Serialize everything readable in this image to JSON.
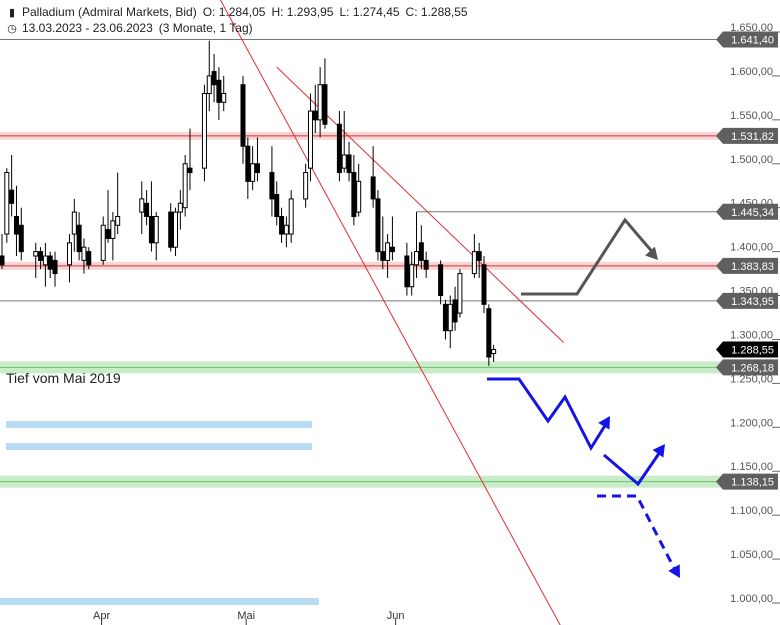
{
  "header": {
    "instrument": "Palladium (Admiral Markets, Bid)",
    "open": "O: 1.284,05",
    "high": "H: 1.293,95",
    "low": "L: 1.274,45",
    "close": "C: 1.288,55",
    "range": "13.03.2023 - 23.06.2023",
    "period": "(3 Monate, 1 Tag)",
    "instrument_icon": "candlestick-icon",
    "range_icon": "clock-icon"
  },
  "annotation": {
    "text": "Tief vom Mai 2019"
  },
  "colors": {
    "candle_up": "#ffffff",
    "candle_down": "#000000",
    "resistance": "#e8a0a0",
    "support": "#a8dca8",
    "trendline": "#e03030",
    "scenario_gray": "#555555",
    "scenario_blue": "#1414e6",
    "zone_blue": "#b8dcf4"
  },
  "chart_data": {
    "type": "candlestick",
    "x_tick_labels": [
      "Apr",
      "Mai",
      "Jun"
    ],
    "x_ticks": [
      "2023-04-01",
      "2023-05-01",
      "2023-06-01"
    ],
    "x_range": [
      "2023-03-13",
      "2023-06-23"
    ],
    "y_range": [
      990,
      1660
    ],
    "y_ticks": [
      1000,
      1050,
      1100,
      1150,
      1200,
      1250,
      1300,
      1350,
      1400,
      1450,
      1500,
      1550,
      1600,
      1650
    ],
    "y_tick_labels": [
      "1.000,00",
      "1.050,00",
      "1.100,00",
      "1.150,00",
      "1.200,00",
      "1.250,00",
      "1.300,00",
      "1.350,00",
      "1.400,00",
      "1.450,00",
      "1.500,00",
      "1.550,00",
      "1.600,00",
      "1.650,00"
    ],
    "horizontal_levels": [
      {
        "value": 1641.4,
        "label": "1.641,40",
        "style": "gray-line"
      },
      {
        "value": 1531.82,
        "label": "1.531,82",
        "style": "red-zone"
      },
      {
        "value": 1445.34,
        "label": "1.445,34",
        "style": "gray-line"
      },
      {
        "value": 1383.83,
        "label": "1.383,83",
        "style": "red-zone"
      },
      {
        "value": 1343.95,
        "label": "1.343,95",
        "style": "gray-line"
      },
      {
        "value": 1268.18,
        "label": "1.268,18",
        "style": "green-zone"
      },
      {
        "value": 1138.15,
        "label": "1.138,15",
        "style": "green-zone"
      }
    ],
    "last_price": {
      "value": 1288.55,
      "label": "1.288,55"
    },
    "trendlines": [
      {
        "from": {
          "date": "2023-04-24",
          "value": 1720
        },
        "to": {
          "date": "2023-06-23",
          "value": 1060
        }
      },
      {
        "from": {
          "date": "2023-05-09",
          "value": 1610
        },
        "to": {
          "date": "2023-06-23",
          "value": 1335
        }
      }
    ],
    "candles": [
      {
        "date": "2023-03-13",
        "o": 1395,
        "h": 1420,
        "l": 1380,
        "c": 1385
      },
      {
        "date": "2023-03-14",
        "o": 1420,
        "h": 1495,
        "l": 1410,
        "c": 1490
      },
      {
        "date": "2023-03-15",
        "o": 1470,
        "h": 1510,
        "l": 1440,
        "c": 1455
      },
      {
        "date": "2023-03-16",
        "o": 1440,
        "h": 1475,
        "l": 1395,
        "c": 1420
      },
      {
        "date": "2023-03-17",
        "o": 1430,
        "h": 1450,
        "l": 1390,
        "c": 1400
      },
      {
        "date": "2023-03-20",
        "o": 1395,
        "h": 1410,
        "l": 1370,
        "c": 1400
      },
      {
        "date": "2023-03-21",
        "o": 1400,
        "h": 1405,
        "l": 1380,
        "c": 1390
      },
      {
        "date": "2023-03-22",
        "o": 1385,
        "h": 1410,
        "l": 1360,
        "c": 1395
      },
      {
        "date": "2023-03-23",
        "o": 1395,
        "h": 1400,
        "l": 1370,
        "c": 1380
      },
      {
        "date": "2023-03-24",
        "o": 1390,
        "h": 1400,
        "l": 1360,
        "c": 1375
      },
      {
        "date": "2023-03-27",
        "o": 1385,
        "h": 1420,
        "l": 1365,
        "c": 1410
      },
      {
        "date": "2023-03-28",
        "o": 1420,
        "h": 1460,
        "l": 1400,
        "c": 1445
      },
      {
        "date": "2023-03-29",
        "o": 1430,
        "h": 1445,
        "l": 1390,
        "c": 1400
      },
      {
        "date": "2023-03-30",
        "o": 1390,
        "h": 1415,
        "l": 1375,
        "c": 1405
      },
      {
        "date": "2023-03-31",
        "o": 1400,
        "h": 1405,
        "l": 1380,
        "c": 1385
      },
      {
        "date": "2023-04-03",
        "o": 1390,
        "h": 1440,
        "l": 1385,
        "c": 1430
      },
      {
        "date": "2023-04-04",
        "o": 1425,
        "h": 1470,
        "l": 1410,
        "c": 1415
      },
      {
        "date": "2023-04-05",
        "o": 1415,
        "h": 1445,
        "l": 1390,
        "c": 1435
      },
      {
        "date": "2023-04-06",
        "o": 1430,
        "h": 1490,
        "l": 1420,
        "c": 1440
      },
      {
        "date": "2023-04-11",
        "o": 1445,
        "h": 1480,
        "l": 1420,
        "c": 1460
      },
      {
        "date": "2023-04-12",
        "o": 1455,
        "h": 1470,
        "l": 1430,
        "c": 1440
      },
      {
        "date": "2023-04-13",
        "o": 1440,
        "h": 1480,
        "l": 1400,
        "c": 1410
      },
      {
        "date": "2023-04-14",
        "o": 1410,
        "h": 1445,
        "l": 1390,
        "c": 1440
      },
      {
        "date": "2023-04-17",
        "o": 1445,
        "h": 1455,
        "l": 1400,
        "c": 1405
      },
      {
        "date": "2023-04-18",
        "o": 1405,
        "h": 1450,
        "l": 1395,
        "c": 1445
      },
      {
        "date": "2023-04-19",
        "o": 1445,
        "h": 1470,
        "l": 1425,
        "c": 1455
      },
      {
        "date": "2023-04-20",
        "o": 1450,
        "h": 1510,
        "l": 1440,
        "c": 1500
      },
      {
        "date": "2023-04-21",
        "o": 1495,
        "h": 1540,
        "l": 1470,
        "c": 1490
      },
      {
        "date": "2023-04-24",
        "o": 1495,
        "h": 1590,
        "l": 1480,
        "c": 1580
      },
      {
        "date": "2023-04-25",
        "o": 1580,
        "h": 1640,
        "l": 1560,
        "c": 1600
      },
      {
        "date": "2023-04-26",
        "o": 1605,
        "h": 1625,
        "l": 1570,
        "c": 1590
      },
      {
        "date": "2023-04-27",
        "o": 1595,
        "h": 1610,
        "l": 1550,
        "c": 1570
      },
      {
        "date": "2023-04-28",
        "o": 1570,
        "h": 1600,
        "l": 1560,
        "c": 1580
      },
      {
        "date": "2023-05-02",
        "o": 1590,
        "h": 1600,
        "l": 1500,
        "c": 1520
      },
      {
        "date": "2023-05-03",
        "o": 1520,
        "h": 1530,
        "l": 1460,
        "c": 1480
      },
      {
        "date": "2023-05-04",
        "o": 1480,
        "h": 1520,
        "l": 1470,
        "c": 1500
      },
      {
        "date": "2023-05-05",
        "o": 1500,
        "h": 1530,
        "l": 1480,
        "c": 1490
      },
      {
        "date": "2023-05-08",
        "o": 1490,
        "h": 1520,
        "l": 1440,
        "c": 1460
      },
      {
        "date": "2023-05-09",
        "o": 1465,
        "h": 1480,
        "l": 1430,
        "c": 1440
      },
      {
        "date": "2023-05-10",
        "o": 1440,
        "h": 1450,
        "l": 1410,
        "c": 1420
      },
      {
        "date": "2023-05-11",
        "o": 1420,
        "h": 1440,
        "l": 1405,
        "c": 1430
      },
      {
        "date": "2023-05-12",
        "o": 1420,
        "h": 1470,
        "l": 1410,
        "c": 1460
      },
      {
        "date": "2023-05-15",
        "o": 1460,
        "h": 1500,
        "l": 1450,
        "c": 1490
      },
      {
        "date": "2023-05-16",
        "o": 1495,
        "h": 1580,
        "l": 1480,
        "c": 1560
      },
      {
        "date": "2023-05-17",
        "o": 1560,
        "h": 1590,
        "l": 1535,
        "c": 1550
      },
      {
        "date": "2023-05-18",
        "o": 1550,
        "h": 1610,
        "l": 1530,
        "c": 1590
      },
      {
        "date": "2023-05-19",
        "o": 1590,
        "h": 1620,
        "l": 1540,
        "c": 1545
      },
      {
        "date": "2023-05-22",
        "o": 1545,
        "h": 1560,
        "l": 1480,
        "c": 1490
      },
      {
        "date": "2023-05-23",
        "o": 1495,
        "h": 1560,
        "l": 1490,
        "c": 1510
      },
      {
        "date": "2023-05-24",
        "o": 1510,
        "h": 1525,
        "l": 1480,
        "c": 1490
      },
      {
        "date": "2023-05-25",
        "o": 1490,
        "h": 1510,
        "l": 1430,
        "c": 1440
      },
      {
        "date": "2023-05-26",
        "o": 1445,
        "h": 1500,
        "l": 1440,
        "c": 1480
      },
      {
        "date": "2023-05-29",
        "o": 1485,
        "h": 1520,
        "l": 1450,
        "c": 1460
      },
      {
        "date": "2023-05-30",
        "o": 1460,
        "h": 1470,
        "l": 1390,
        "c": 1400
      },
      {
        "date": "2023-05-31",
        "o": 1400,
        "h": 1440,
        "l": 1380,
        "c": 1390
      },
      {
        "date": "2023-06-01",
        "o": 1390,
        "h": 1420,
        "l": 1370,
        "c": 1410
      },
      {
        "date": "2023-06-02",
        "o": 1405,
        "h": 1440,
        "l": 1390,
        "c": 1400
      },
      {
        "date": "2023-06-05",
        "o": 1395,
        "h": 1410,
        "l": 1350,
        "c": 1360
      },
      {
        "date": "2023-06-06",
        "o": 1360,
        "h": 1400,
        "l": 1350,
        "c": 1385
      },
      {
        "date": "2023-06-07",
        "o": 1385,
        "h": 1445,
        "l": 1370,
        "c": 1400
      },
      {
        "date": "2023-06-08",
        "o": 1410,
        "h": 1430,
        "l": 1380,
        "c": 1390
      },
      {
        "date": "2023-06-09",
        "o": 1390,
        "h": 1400,
        "l": 1370,
        "c": 1380
      },
      {
        "date": "2023-06-12",
        "o": 1385,
        "h": 1390,
        "l": 1340,
        "c": 1350
      },
      {
        "date": "2023-06-13",
        "o": 1340,
        "h": 1345,
        "l": 1300,
        "c": 1310
      },
      {
        "date": "2023-06-14",
        "o": 1310,
        "h": 1350,
        "l": 1290,
        "c": 1340
      },
      {
        "date": "2023-06-15",
        "o": 1345,
        "h": 1360,
        "l": 1310,
        "c": 1320
      },
      {
        "date": "2023-06-16",
        "o": 1330,
        "h": 1380,
        "l": 1325,
        "c": 1375
      },
      {
        "date": "2023-06-19",
        "o": 1375,
        "h": 1420,
        "l": 1370,
        "c": 1400
      },
      {
        "date": "2023-06-20",
        "o": 1400,
        "h": 1410,
        "l": 1370,
        "c": 1390
      },
      {
        "date": "2023-06-21",
        "o": 1385,
        "h": 1395,
        "l": 1330,
        "c": 1340
      },
      {
        "date": "2023-06-22",
        "o": 1335,
        "h": 1340,
        "l": 1270,
        "c": 1280
      },
      {
        "date": "2023-06-23",
        "o": 1284.05,
        "h": 1293.95,
        "l": 1274.45,
        "c": 1288.55
      }
    ]
  }
}
